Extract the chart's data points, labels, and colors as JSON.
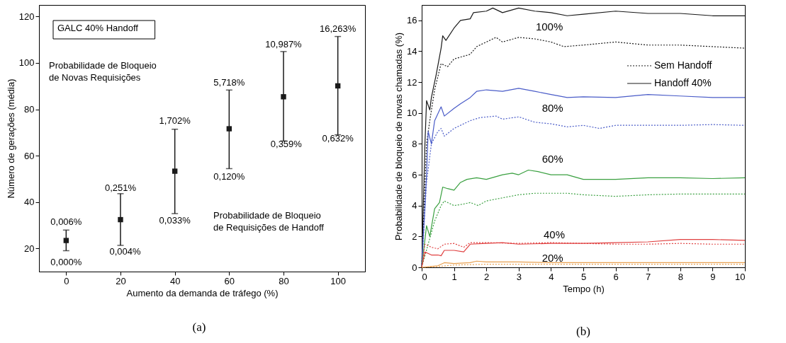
{
  "chart_data": [
    {
      "type": "scatter",
      "xlabel": "Aumento da demanda de tráfego (%)",
      "ylabel": "Número de gerações (média)",
      "xlim": [
        -10,
        110
      ],
      "xticks": [
        0,
        20,
        40,
        60,
        80,
        100
      ],
      "ylim": [
        10,
        125
      ],
      "yticks": [
        20,
        40,
        60,
        80,
        100,
        120
      ],
      "marker": "square",
      "x": [
        0,
        20,
        40,
        60,
        80,
        100
      ],
      "series": [
        {
          "color": "#1a1a1a",
          "values": [
            23.4,
            32.4,
            53.3,
            71.6,
            85.4,
            90.1
          ],
          "errors": [
            [
              19,
              27.9
            ],
            [
              21.3,
              43.6
            ],
            [
              35,
              71.4
            ],
            [
              54.4,
              88.3
            ],
            [
              66.3,
              104.9
            ],
            [
              69,
              111.4
            ]
          ]
        }
      ],
      "annotations": [
        "GALC 40% Handoff",
        "Probabilidade de Bloqueio\nde Novas Requisições",
        "Probabilidade de Bloqueio\nde Requisições de Handoff",
        "(a)",
        "0,006%",
        "0,000%",
        "0,251%",
        "0,004%",
        "1,702%",
        "0,033%",
        "5,718%",
        "0,120%",
        "10,987%",
        "0,359%",
        "16,263%",
        "0,632%"
      ]
    },
    {
      "type": "line",
      "xlabel": "Tempo (h)",
      "ylabel": "Probabilidade de bloqueio de novas chamadas (%)",
      "xlim": [
        0,
        10
      ],
      "xticks": [
        0,
        1,
        2,
        3,
        4,
        5,
        6,
        7,
        8,
        9,
        10
      ],
      "ylim": [
        0,
        17
      ],
      "yticks": [
        0,
        2,
        4,
        6,
        8,
        10,
        12,
        14,
        16
      ],
      "legend": "right",
      "series": [
        {
          "name": "Sem Handoff",
          "color": "#1a1a1a",
          "line_style": "dotted",
          "x": [
            0,
            0.15,
            0.25,
            0.4,
            0.6,
            0.8,
            1,
            1.5,
            1.7,
            2,
            2.3,
            2.5,
            3,
            3.5,
            4,
            4.4,
            5,
            6,
            7,
            8,
            9,
            10
          ],
          "values": [
            0,
            8,
            9.5,
            11.5,
            13.2,
            13,
            13.5,
            13.8,
            14.3,
            14.6,
            14.9,
            14.6,
            14.9,
            14.8,
            14.6,
            14.3,
            14.4,
            14.6,
            14.4,
            14.4,
            14.3,
            14.2
          ]
        },
        {
          "name": "Handoff 40%",
          "color": "#1a1a1a",
          "line_style": "solid",
          "x": [
            0,
            0.1,
            0.15,
            0.25,
            0.3,
            0.45,
            0.6,
            0.65,
            0.75,
            1,
            1.2,
            1.5,
            1.6,
            2,
            2.2,
            2.5,
            3,
            3.5,
            4,
            4.5,
            5,
            6,
            7,
            8,
            9,
            10
          ],
          "values": [
            0,
            8,
            10.8,
            10.2,
            11,
            12.5,
            14.2,
            15,
            14.7,
            15.5,
            16,
            16.1,
            16.5,
            16.6,
            16.8,
            16.5,
            16.8,
            16.6,
            16.5,
            16.3,
            16.4,
            16.6,
            16.45,
            16.45,
            16.3,
            16.3
          ]
        },
        {
          "color": "#4a5cc8",
          "line_style": "dotted",
          "x": [
            0,
            0.15,
            0.3,
            0.5,
            0.6,
            0.7,
            1,
            1.5,
            1.8,
            2.3,
            2.5,
            3,
            3.5,
            4,
            4.5,
            5,
            5.5,
            6,
            7,
            8,
            9,
            10
          ],
          "values": [
            0,
            5.5,
            8,
            8.8,
            9,
            8.5,
            9,
            9.5,
            9.7,
            9.8,
            9.6,
            9.75,
            9.4,
            9.3,
            9.1,
            9.2,
            9,
            9.2,
            9.2,
            9.2,
            9.25,
            9.2
          ]
        },
        {
          "color": "#4a5cc8",
          "line_style": "solid",
          "x": [
            0,
            0.15,
            0.2,
            0.3,
            0.4,
            0.6,
            0.7,
            1,
            1.2,
            1.5,
            1.7,
            2,
            2.5,
            3,
            3.5,
            4,
            4.5,
            5,
            6,
            7,
            8,
            9,
            10
          ],
          "values": [
            0,
            6,
            8.8,
            8,
            9.5,
            10.4,
            9.8,
            10.3,
            10.6,
            11,
            11.4,
            11.5,
            11.4,
            11.6,
            11.4,
            11.2,
            11,
            11.05,
            11,
            11.2,
            11.1,
            11,
            11
          ]
        },
        {
          "color": "#3aa040",
          "line_style": "dotted",
          "x": [
            0,
            0.2,
            0.4,
            0.6,
            0.7,
            1,
            1.3,
            1.5,
            1.75,
            2,
            2.5,
            3,
            3.5,
            4,
            4.5,
            5,
            6,
            7,
            8,
            9,
            10
          ],
          "values": [
            0,
            1.5,
            3,
            4,
            4.3,
            4,
            4.1,
            4.2,
            4,
            4.3,
            4.5,
            4.7,
            4.8,
            4.8,
            4.8,
            4.7,
            4.6,
            4.7,
            4.75,
            4.75,
            4.75
          ]
        },
        {
          "color": "#3aa040",
          "line_style": "solid",
          "x": [
            0,
            0.15,
            0.25,
            0.4,
            0.55,
            0.65,
            0.8,
            1,
            1.2,
            1.4,
            1.7,
            2,
            2.5,
            2.8,
            3,
            3.3,
            3.6,
            4,
            4.5,
            5,
            6,
            7,
            8,
            9,
            10
          ],
          "values": [
            0,
            2.7,
            2,
            3.8,
            4.2,
            5.2,
            5.1,
            5,
            5.5,
            5.7,
            5.8,
            5.7,
            6,
            6.1,
            6,
            6.3,
            6.2,
            6,
            6,
            5.7,
            5.7,
            5.8,
            5.8,
            5.75,
            5.8
          ]
        },
        {
          "color": "#e04040",
          "line_style": "dotted",
          "x": [
            0,
            0.1,
            0.3,
            0.5,
            0.7,
            1,
            1.3,
            1.5,
            2,
            3,
            4,
            5,
            6,
            7,
            8,
            9,
            10
          ],
          "values": [
            0,
            1.5,
            1.3,
            1.2,
            1.5,
            1.55,
            1.3,
            1.6,
            1.6,
            1.55,
            1.6,
            1.55,
            1.5,
            1.5,
            1.55,
            1.5,
            1.5
          ]
        },
        {
          "color": "#e04040",
          "line_style": "solid",
          "x": [
            0,
            0.1,
            0.3,
            0.5,
            0.6,
            0.7,
            1,
            1.3,
            1.5,
            2,
            2.5,
            3,
            4,
            5,
            6,
            7,
            8,
            9,
            10
          ],
          "values": [
            0,
            1,
            0.8,
            0.8,
            0.75,
            1.1,
            1.1,
            1,
            1.5,
            1.55,
            1.6,
            1.5,
            1.55,
            1.55,
            1.6,
            1.65,
            1.8,
            1.8,
            1.75
          ]
        },
        {
          "color": "#e8a050",
          "line_style": "dotted",
          "x": [
            0,
            0.5,
            1,
            2,
            4,
            6,
            8,
            10
          ],
          "values": [
            0,
            0.05,
            0.15,
            0.2,
            0.2,
            0.2,
            0.2,
            0.2
          ]
        },
        {
          "color": "#e8a050",
          "line_style": "solid",
          "x": [
            0,
            0.5,
            0.7,
            1,
            1.5,
            1.7,
            2,
            3,
            4,
            5,
            6,
            7,
            8,
            9,
            10
          ],
          "values": [
            0,
            0.1,
            0.3,
            0.25,
            0.3,
            0.4,
            0.35,
            0.35,
            0.3,
            0.3,
            0.3,
            0.3,
            0.3,
            0.3,
            0.3
          ]
        }
      ],
      "annotations": [
        "(b)",
        "100%",
        "80%",
        "60%",
        "40%",
        "20%"
      ]
    }
  ]
}
